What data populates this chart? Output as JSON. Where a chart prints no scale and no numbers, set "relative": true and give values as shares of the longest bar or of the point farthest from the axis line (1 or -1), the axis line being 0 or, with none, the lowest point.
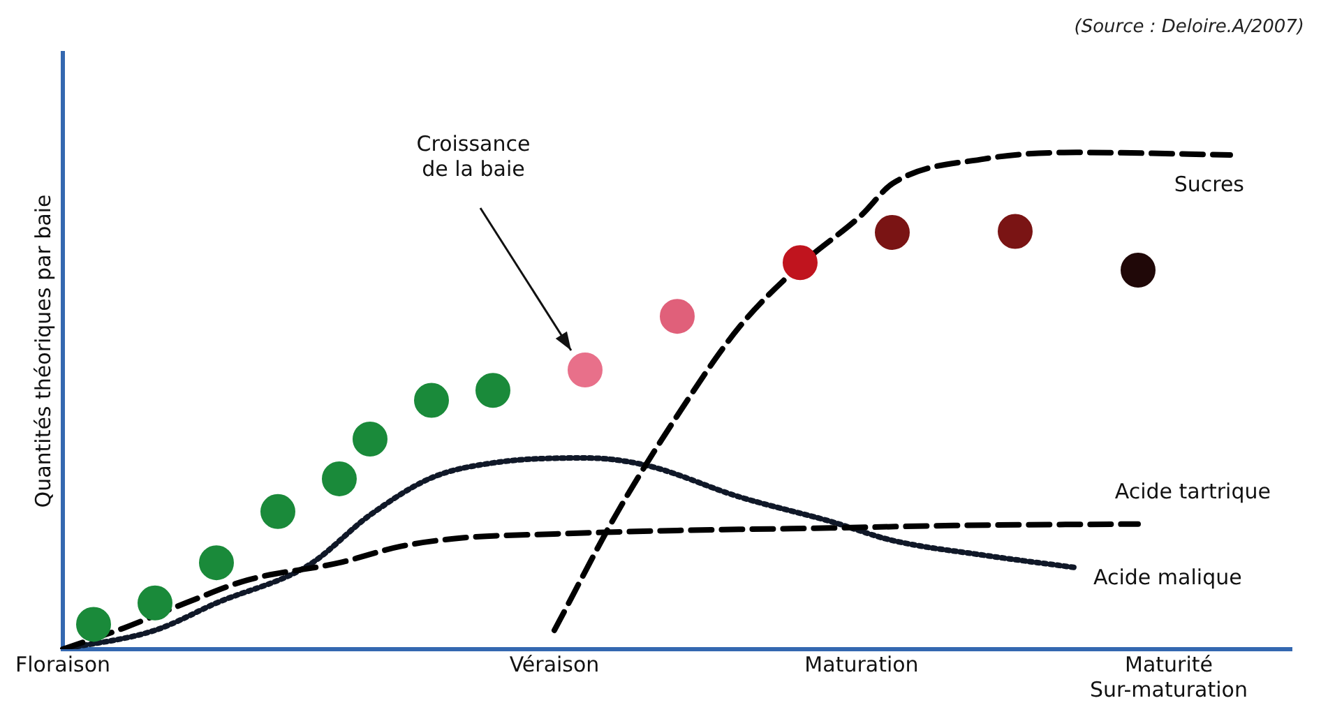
{
  "chart_data": {
    "type": "line",
    "relative": true,
    "ylabel": "Quantités théoriques par baie",
    "annotations": [
      "(Source : Deloire.A/2007)"
    ],
    "legend": false,
    "grid": false,
    "categories": [
      "Floraison",
      null,
      null,
      null,
      null,
      null,
      null,
      null,
      null,
      null,
      null,
      null,
      null,
      null,
      null,
      null,
      "Véraison",
      null,
      null,
      null,
      null,
      null,
      null,
      null,
      null,
      null,
      "Maturation",
      null,
      null,
      null,
      null,
      null,
      null,
      null,
      null,
      null,
      "Maturité\nSur-maturation",
      null,
      null,
      null,
      null
    ],
    "series": [
      {
        "name": "Croissance\nde la baie",
        "type": "scatter",
        "marker": "circle",
        "values": [
          null,
          0.05,
          null,
          0.093,
          null,
          0.174,
          null,
          0.277,
          null,
          0.343,
          0.423,
          null,
          0.501,
          null,
          0.521,
          null,
          null,
          0.562,
          null,
          null,
          0.67,
          null,
          null,
          null,
          0.778,
          null,
          null,
          0.839,
          null,
          null,
          null,
          0.841,
          null,
          null,
          null,
          0.763,
          null,
          null,
          null,
          null,
          null
        ],
        "colors": [
          null,
          "#1a8a3a",
          null,
          "#1a8a3a",
          null,
          "#1a8a3a",
          null,
          "#1a8a3a",
          null,
          "#1a8a3a",
          "#1a8a3a",
          null,
          "#1a8a3a",
          null,
          "#1a8a3a",
          null,
          null,
          "#e8708a",
          null,
          null,
          "#e0607a",
          null,
          null,
          null,
          "#c0141e",
          null,
          null,
          "#7a1414",
          null,
          null,
          null,
          "#7a1414",
          null,
          null,
          null,
          "#200808",
          null,
          null,
          null,
          null,
          null
        ]
      },
      {
        "name": "Sucres",
        "color": "#000000",
        "line_style": "dashed",
        "marker": "none",
        "values": [
          null,
          null,
          null,
          null,
          null,
          null,
          null,
          null,
          null,
          null,
          null,
          null,
          null,
          null,
          null,
          null,
          0.038,
          null,
          0.27,
          null,
          0.47,
          null,
          0.647,
          null,
          0.773,
          null,
          0.874,
          0.937,
          null,
          null,
          0.987,
          null,
          null,
          1,
          null,
          null,
          null,
          null,
          0.995,
          null,
          null
        ]
      },
      {
        "name": "Acide tartrique",
        "color": "#000000",
        "line_style": "dashed",
        "marker": "none",
        "values": [
          0,
          null,
          0.043,
          null,
          0.093,
          null,
          0.139,
          null,
          null,
          0.174,
          null,
          0.207,
          null,
          0.224,
          null,
          null,
          0.232,
          null,
          null,
          null,
          0.239,
          null,
          null,
          null,
          null,
          0.244,
          null,
          null,
          null,
          0.249,
          null,
          null,
          null,
          null,
          null,
          0.252,
          null,
          null,
          null,
          null,
          null
        ]
      },
      {
        "name": "Acide malique",
        "color": "#101828",
        "line_style": "dotted",
        "marker": "none",
        "values": [
          0,
          null,
          null,
          0.038,
          null,
          0.093,
          null,
          null,
          0.169,
          null,
          0.27,
          null,
          0.345,
          null,
          0.375,
          null,
          null,
          0.385,
          null,
          0.37,
          null,
          null,
          0.307,
          null,
          null,
          0.257,
          null,
          0.219,
          null,
          null,
          0.189,
          null,
          null,
          0.164,
          null,
          null,
          null,
          null,
          null,
          null,
          null
        ]
      }
    ]
  }
}
